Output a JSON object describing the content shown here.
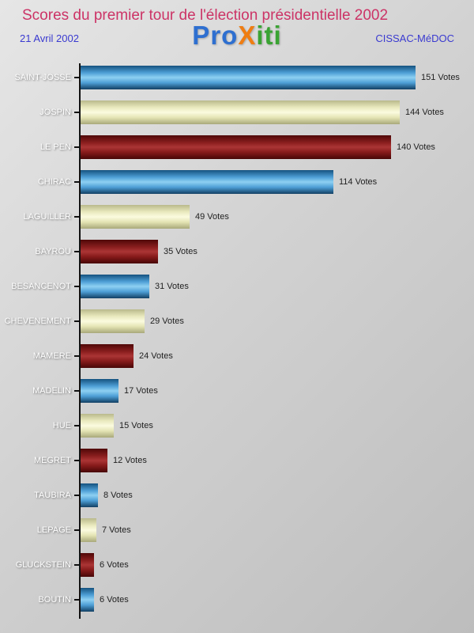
{
  "header": {
    "title": "Scores du premier tour de l'élection présidentielle 2002",
    "title_color": "#cc3366",
    "date": "21 Avril 2002",
    "location": "CISSAC-MéDOC",
    "subtext_color": "#3a3ad0",
    "logo_letters": [
      {
        "ch": "P",
        "color": "#2e6fd0"
      },
      {
        "ch": "r",
        "color": "#2e6fd0"
      },
      {
        "ch": "o",
        "color": "#2e6fd0"
      },
      {
        "ch": "X",
        "color": "#ef7d12"
      },
      {
        "ch": "i",
        "color": "#3aa333"
      },
      {
        "ch": "t",
        "color": "#3aa333"
      },
      {
        "ch": "i",
        "color": "#3aa333"
      }
    ]
  },
  "chart_data": {
    "type": "bar",
    "orientation": "horizontal",
    "title": "Scores du premier tour de l'élection présidentielle 2002",
    "categories": [
      "SAINT-JOSSE",
      "JOSPIN",
      "LE PEN",
      "CHIRAC",
      "LAGUILLER",
      "BAYROU",
      "BESANCENOT",
      "CHEVENEMENT",
      "MAMERE",
      "MADELIN",
      "HUE",
      "MEGRET",
      "TAUBIRA",
      "LEPAGE",
      "GLUCKSTEIN",
      "BOUTIN"
    ],
    "values": [
      151,
      144,
      140,
      114,
      49,
      35,
      31,
      29,
      24,
      17,
      15,
      12,
      8,
      7,
      6,
      6
    ],
    "value_suffix": " Votes",
    "xlabel": "",
    "ylabel": "",
    "xlim": [
      0,
      155
    ],
    "grid": false,
    "legend": false,
    "bar_colors": [
      "blue",
      "cream",
      "darkred",
      "blue",
      "cream",
      "darkred",
      "blue",
      "cream",
      "darkred",
      "blue",
      "cream",
      "darkred",
      "blue",
      "cream",
      "darkred",
      "blue"
    ],
    "color_hex": {
      "blue": "#4e9fd6",
      "cream": "#f0f0c6",
      "darkred": "#8c1f1f",
      "axis": "#111111",
      "value_text": "#222222",
      "category_text": "#ffffff"
    }
  }
}
